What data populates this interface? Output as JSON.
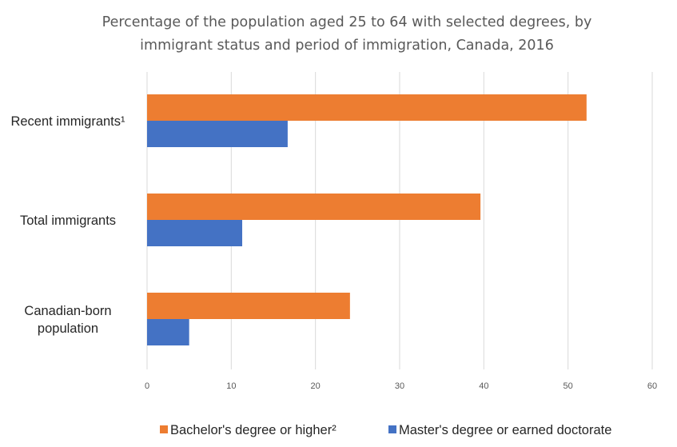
{
  "chart_data": {
    "type": "bar",
    "orientation": "horizontal",
    "title_lines": [
      "Percentage of the population aged 25 to 64 with selected degrees, by",
      "immigrant status and period of immigration, Canada, 2016"
    ],
    "categories": [
      [
        "Recent immigrants¹"
      ],
      [
        "Total immigrants"
      ],
      [
        "Canadian-born",
        "population"
      ]
    ],
    "series": [
      {
        "name": "Bachelor's degree or higher²",
        "color": "#ed7d31",
        "values": [
          52.2,
          39.6,
          24.1
        ]
      },
      {
        "name": "Master's degree or earned doctorate",
        "color": "#4472c4",
        "values": [
          16.7,
          11.3,
          5.0
        ]
      }
    ],
    "xlim": [
      0,
      60
    ],
    "xticks": [
      0,
      10,
      20,
      30,
      40,
      50,
      60
    ],
    "xlabel": "",
    "ylabel": "",
    "grid": true,
    "legend_position": "bottom"
  }
}
